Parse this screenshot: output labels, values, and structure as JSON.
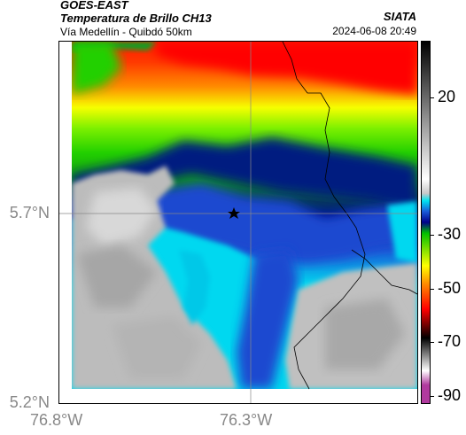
{
  "header": {
    "source": "GOES-EAST",
    "product": "Temperatura de Brillo CH13",
    "route": "Vía Medellín - Quibdó 50km",
    "organization": "SIATA",
    "datetime": "2024-06-08 20:49"
  },
  "axes": {
    "lat_labels": [
      "5.7°N",
      "5.2°N"
    ],
    "lon_labels": [
      "76.8°W",
      "76.3°W"
    ]
  },
  "colorbar": {
    "labels": [
      "20",
      "-30",
      "-50",
      "-70",
      "-90"
    ],
    "stops": [
      "#b03a9e",
      "#ffffff",
      "#000000",
      "#ff0000",
      "#ffff00",
      "#00c000",
      "#00008a",
      "#00e4f0",
      "#c8c8c8",
      "#000000"
    ]
  },
  "map": {
    "marker_icon": "star-icon",
    "colors": {
      "cold_red": "#ff1a00",
      "orange": "#ff8c00",
      "yellow": "#f6ff00",
      "green": "#22d000",
      "dark_green": "#0a8a10",
      "navy": "#001490",
      "blue": "#1a5ad8",
      "cyan": "#00d8f0",
      "gray": "#b8b8b8"
    }
  }
}
